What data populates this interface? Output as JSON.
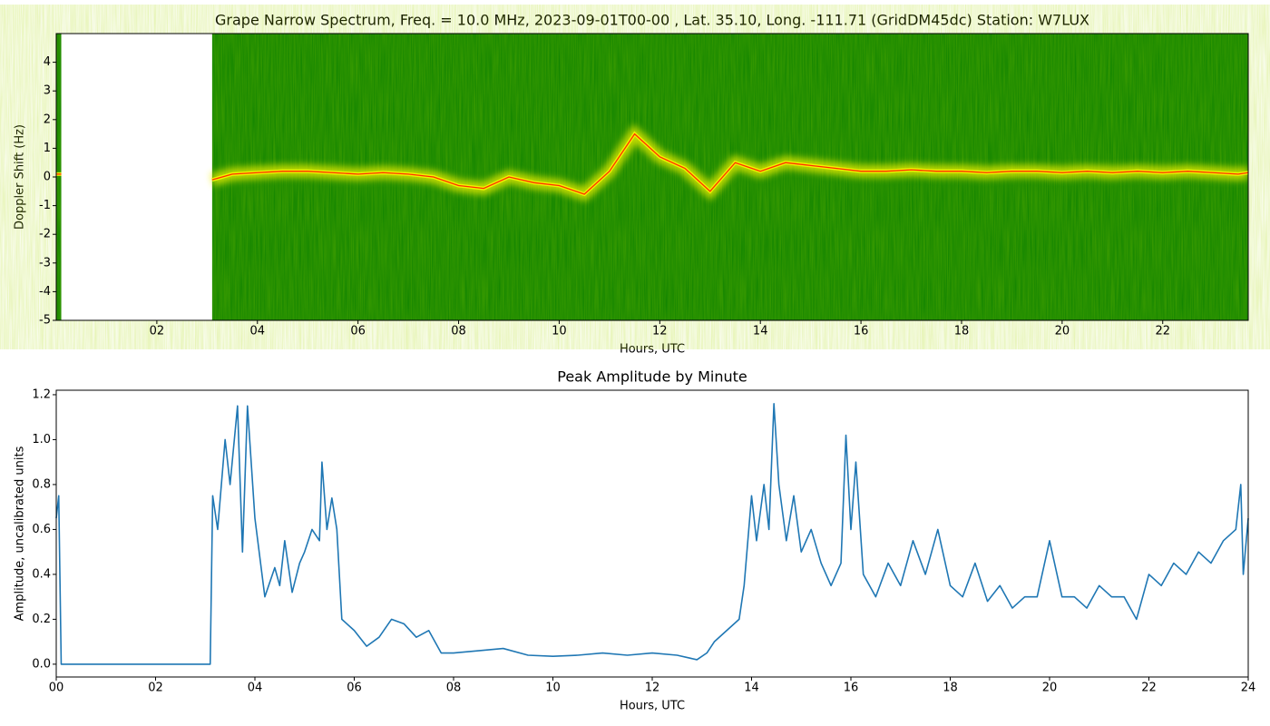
{
  "chart_data": [
    {
      "type": "spectrogram",
      "title": "Grape Narrow Spectrum, Freq. = 10.0 MHz, 2023-09-01T00-00 , Lat.  35.10, Long. -111.71 (GridDM45dc) Station: W7LUX",
      "x_label": "Hours, UTC",
      "y_label": "Doppler Shift (Hz)",
      "xlim": [
        0,
        23.7
      ],
      "ylim": [
        -5,
        5
      ],
      "xticks": [
        {
          "value": 2,
          "label": "02"
        },
        {
          "value": 4,
          "label": "04"
        },
        {
          "value": 6,
          "label": "06"
        },
        {
          "value": 8,
          "label": "08"
        },
        {
          "value": 10,
          "label": "10"
        },
        {
          "value": 12,
          "label": "12"
        },
        {
          "value": 14,
          "label": "14"
        },
        {
          "value": 16,
          "label": "16"
        },
        {
          "value": 18,
          "label": "18"
        },
        {
          "value": 20,
          "label": "20"
        },
        {
          "value": 22,
          "label": "22"
        }
      ],
      "yticks": [
        -5,
        -4,
        -3,
        -2,
        -1,
        0,
        1,
        2,
        3,
        4
      ],
      "background": "#0a8000",
      "color": "#f0f000",
      "core_color": "#ff3000",
      "x": [
        0,
        0.1,
        1.6,
        3.1,
        3.5,
        4,
        4.5,
        5,
        5.5,
        6,
        6.5,
        7,
        7.5,
        8,
        8.5,
        9,
        9.5,
        10,
        10.5,
        11,
        11.5,
        12,
        12.5,
        13,
        13.5,
        14,
        14.5,
        15,
        15.5,
        16,
        16.5,
        17,
        17.5,
        18,
        18.5,
        19,
        19.5,
        20,
        20.5,
        21,
        21.5,
        22,
        22.5,
        23,
        23.5,
        23.7
      ],
      "values": [
        0.1,
        0.1,
        null,
        -0.1,
        0.1,
        0.15,
        0.2,
        0.2,
        0.15,
        0.1,
        0.15,
        0.1,
        0.0,
        -0.3,
        -0.4,
        0.0,
        -0.2,
        -0.3,
        -0.6,
        0.2,
        1.5,
        0.7,
        0.3,
        -0.5,
        0.5,
        0.2,
        0.5,
        0.4,
        0.3,
        0.2,
        0.2,
        0.25,
        0.2,
        0.2,
        0.15,
        0.2,
        0.2,
        0.15,
        0.2,
        0.15,
        0.2,
        0.15,
        0.2,
        0.15,
        0.1,
        0.15
      ]
    },
    {
      "type": "line",
      "title": "Peak Amplitude by Minute",
      "x_label": "Hours, UTC",
      "y_label": "Amplitude, uncalibrated units",
      "xlim": [
        0,
        24
      ],
      "ylim": [
        -0.057,
        1.22
      ],
      "xticks": [
        {
          "value": 0,
          "label": "00"
        },
        {
          "value": 2,
          "label": "02"
        },
        {
          "value": 4,
          "label": "04"
        },
        {
          "value": 6,
          "label": "06"
        },
        {
          "value": 8,
          "label": "08"
        },
        {
          "value": 10,
          "label": "10"
        },
        {
          "value": 12,
          "label": "12"
        },
        {
          "value": 14,
          "label": "14"
        },
        {
          "value": 16,
          "label": "16"
        },
        {
          "value": 18,
          "label": "18"
        },
        {
          "value": 20,
          "label": "20"
        },
        {
          "value": 22,
          "label": "22"
        },
        {
          "value": 24,
          "label": "24"
        }
      ],
      "yticks": [
        {
          "value": 0,
          "label": "0.0"
        },
        0.2,
        0.4,
        0.6,
        0.8,
        {
          "value": 1,
          "label": "1.0"
        },
        1.2
      ],
      "color": "#1f77b4",
      "x": [
        0,
        0.05,
        0.1,
        3.1,
        3.15,
        3.25,
        3.4,
        3.5,
        3.65,
        3.75,
        3.85,
        4.0,
        4.2,
        4.4,
        4.5,
        4.6,
        4.75,
        4.9,
        5.0,
        5.15,
        5.3,
        5.35,
        5.45,
        5.55,
        5.65,
        5.75,
        6.0,
        6.25,
        6.5,
        6.75,
        7.0,
        7.25,
        7.5,
        7.75,
        8.0,
        8.5,
        9.0,
        9.5,
        10.0,
        10.5,
        11.0,
        11.5,
        12.0,
        12.5,
        12.9,
        13.1,
        13.25,
        13.5,
        13.75,
        13.85,
        14.0,
        14.1,
        14.25,
        14.35,
        14.45,
        14.55,
        14.7,
        14.85,
        15.0,
        15.2,
        15.4,
        15.6,
        15.8,
        15.9,
        16.0,
        16.1,
        16.25,
        16.5,
        16.75,
        17.0,
        17.25,
        17.5,
        17.75,
        18.0,
        18.25,
        18.5,
        18.75,
        19.0,
        19.25,
        19.5,
        19.75,
        20.0,
        20.25,
        20.5,
        20.75,
        21.0,
        21.25,
        21.5,
        21.75,
        22.0,
        22.25,
        22.5,
        22.75,
        23.0,
        23.25,
        23.5,
        23.75,
        23.85,
        23.9,
        24.0
      ],
      "values": [
        0.65,
        0.75,
        0.0,
        0.0,
        0.75,
        0.6,
        1.0,
        0.8,
        1.15,
        0.5,
        1.15,
        0.65,
        0.3,
        0.43,
        0.35,
        0.55,
        0.32,
        0.45,
        0.5,
        0.6,
        0.55,
        0.9,
        0.6,
        0.74,
        0.6,
        0.2,
        0.15,
        0.08,
        0.12,
        0.2,
        0.18,
        0.12,
        0.15,
        0.05,
        0.05,
        0.06,
        0.07,
        0.04,
        0.035,
        0.04,
        0.05,
        0.04,
        0.05,
        0.04,
        0.02,
        0.05,
        0.1,
        0.15,
        0.2,
        0.35,
        0.75,
        0.55,
        0.8,
        0.6,
        1.16,
        0.8,
        0.55,
        0.75,
        0.5,
        0.6,
        0.45,
        0.35,
        0.45,
        1.02,
        0.6,
        0.9,
        0.4,
        0.3,
        0.45,
        0.35,
        0.55,
        0.4,
        0.6,
        0.35,
        0.3,
        0.45,
        0.28,
        0.35,
        0.25,
        0.3,
        0.3,
        0.55,
        0.3,
        0.3,
        0.25,
        0.35,
        0.3,
        0.3,
        0.2,
        0.4,
        0.35,
        0.45,
        0.4,
        0.5,
        0.45,
        0.55,
        0.6,
        0.8,
        0.4,
        0.65
      ]
    }
  ]
}
